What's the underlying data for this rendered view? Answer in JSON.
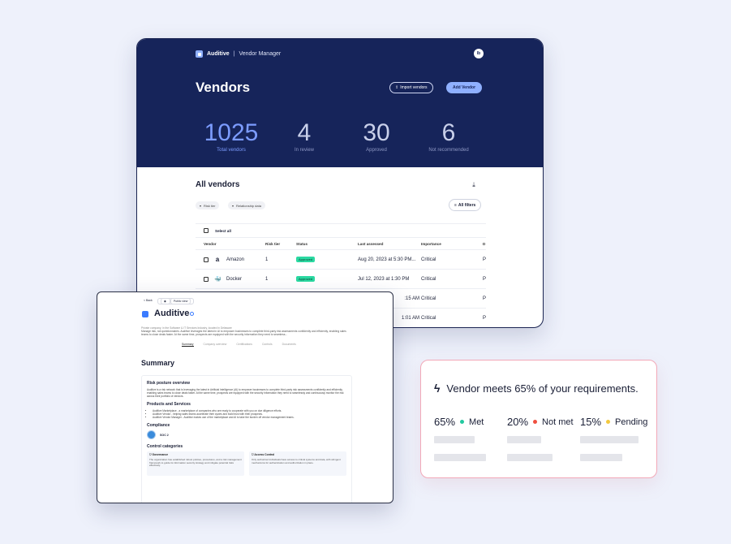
{
  "main": {
    "brand": {
      "name": "Auditive",
      "separator": "|",
      "subtitle": "Vendor Manager"
    },
    "avatar_initials": "lb",
    "title": "Vendors",
    "import_button": "Import vendors",
    "add_button": "Add Vendor",
    "stats": [
      {
        "value": "1025",
        "label": "Total vendors"
      },
      {
        "value": "4",
        "label": "In review"
      },
      {
        "value": "30",
        "label": "Approved"
      },
      {
        "value": "6",
        "label": "Not recommended"
      }
    ],
    "all_vendors_title": "All vendors",
    "filter_chips": [
      "Risk tier",
      "Relationship data"
    ],
    "all_filters": "All filters",
    "select_all": "Select all",
    "columns": [
      "Vendor",
      "Risk tier",
      "Status",
      "Last assessed",
      "Importance",
      "D"
    ],
    "rows": [
      {
        "logo": "a",
        "vendor": "Amazon",
        "risk": "1",
        "status": "Approved",
        "assessed": "Aug 20, 2023 at 5:30 PM...",
        "importance": "Critical",
        "d": "P"
      },
      {
        "logo": "🐳",
        "vendor": "Docker",
        "risk": "1",
        "status": "Approved",
        "assessed": "Jul 12, 2023 at 1:30 PM",
        "importance": "Critical",
        "d": "P"
      },
      {
        "logo": "",
        "vendor": "",
        "risk": "",
        "status": "",
        "assessed": ":15 AM",
        "importance": "Critical",
        "d": "P"
      },
      {
        "logo": "",
        "vendor": "",
        "risk": "",
        "status": "",
        "assessed": "1:01 AM",
        "importance": "Critical",
        "d": "P"
      }
    ],
    "colors": {
      "hero": "#16245a",
      "accent": "#8fb0ff",
      "approved": "#2bd9a2"
    }
  },
  "company": {
    "back": "< Back",
    "public_view": "Public view",
    "name": "Auditive",
    "meta": "Private company, in the Software & IT Services Industry, located in Delaware",
    "description": "Manage risk, not questionnaires. Auditive leverages the latest in AI to empower businesses to complete third-party risk assessments confidently and efficiently, enabling sales teams to close deals faster. At the same time, prospects are equipped with the security information they need to seamless...",
    "tabs": [
      "Summary",
      "Company overview",
      "Certifications",
      "Controls",
      "Documents"
    ],
    "summary_title": "Summary",
    "risk_title": "Risk posture overview",
    "risk_text": "Auditive is a risk network that is leveraging the latest in Artificial Intelligence (AI) to empower businesses to complete third-party risk assessments confidently and efficiently, enabling sales teams to close deals faster. At the same time, prospects are equipped with the security information they need to seamlessly and continuously monitor the risk across their portfolio of vendors.",
    "products_title": "Products and Services",
    "products": [
      "Auditive Marketplace - a marketplace of companies who are ready to cooperate with you on due diligence efforts.",
      "Auditive Vendor - helping sales teams accelerate their cycles and build trust with their prospects.",
      "Auditive Vendor Manager - Auditive makes use of the marketplace and AI to take the burden off vendor management teams."
    ],
    "compliance_title": "Compliance",
    "soc": "SOC 2",
    "control_title": "Control categories",
    "controls": [
      {
        "name": "Governance",
        "text": "The organization has established robust policies, procedures, and a risk management framework to guide its information security strategy and mitigate potential risks effectively."
      },
      {
        "name": "Access Control",
        "text": "Only authorized individuals have access to critical systems and data, with stringent mechanisms for authentication and authorization in place."
      }
    ]
  },
  "requirements": {
    "headline": "Vendor meets 65% of your requirements.",
    "stats": [
      {
        "pct": "65%",
        "label": "Met",
        "color": "#22c9a0"
      },
      {
        "pct": "20%",
        "label": "Not met",
        "color": "#ef4f3f"
      },
      {
        "pct": "15%",
        "label": "Pending",
        "color": "#f3c93f"
      }
    ]
  }
}
